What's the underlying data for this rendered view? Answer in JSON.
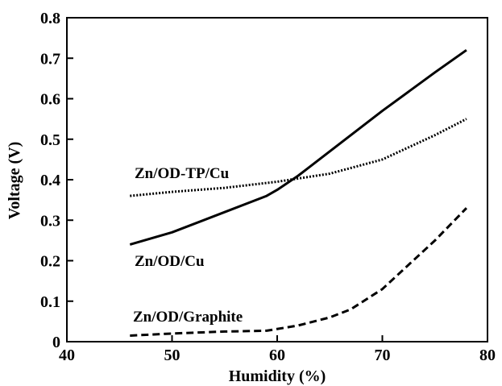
{
  "chart_data": {
    "type": "line",
    "xlabel": "Humidity (%)",
    "ylabel": "Voltage (V)",
    "xlim": [
      40,
      80
    ],
    "ylim": [
      0,
      0.8
    ],
    "x_ticks": [
      "40",
      "50",
      "60",
      "70",
      "80"
    ],
    "y_ticks": [
      "0",
      "0.1",
      "0.2",
      "0.3",
      "0.4",
      "0.5",
      "0.6",
      "0.7",
      "0.8"
    ],
    "grid": false,
    "legend": "none",
    "series": [
      {
        "name": "Zn/OD/Cu",
        "line_style": "solid",
        "color": "#000000",
        "x": [
          46,
          50,
          55,
          59,
          60,
          62,
          65,
          70,
          75,
          78
        ],
        "y": [
          0.24,
          0.27,
          0.32,
          0.36,
          0.375,
          0.41,
          0.47,
          0.57,
          0.665,
          0.72
        ]
      },
      {
        "name": "Zn/OD-TP/Cu",
        "line_style": "dotted",
        "color": "#000000",
        "x": [
          46,
          50,
          55,
          60,
          65,
          70,
          75,
          78
        ],
        "y": [
          0.36,
          0.37,
          0.38,
          0.395,
          0.415,
          0.45,
          0.51,
          0.55
        ]
      },
      {
        "name": "Zn/OD/Graphite",
        "line_style": "dashed",
        "color": "#000000",
        "x": [
          46,
          50,
          55,
          59,
          62,
          65,
          67,
          70,
          75,
          78
        ],
        "y": [
          0.015,
          0.02,
          0.025,
          0.027,
          0.04,
          0.06,
          0.08,
          0.13,
          0.25,
          0.33
        ]
      }
    ]
  }
}
